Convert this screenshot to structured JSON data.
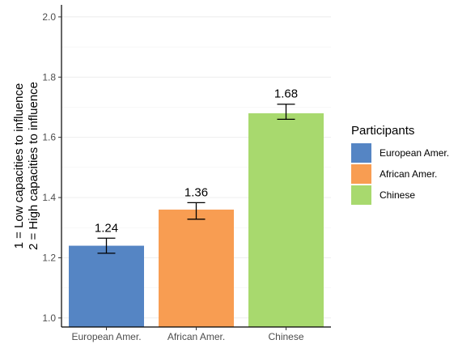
{
  "chart_data": {
    "type": "bar",
    "categories": [
      "European Amer.",
      "African Amer.",
      "Chinese"
    ],
    "values": [
      1.24,
      1.36,
      1.68
    ],
    "error_low": [
      1.215,
      1.328,
      1.66
    ],
    "error_high": [
      1.265,
      1.383,
      1.71
    ],
    "data_labels": [
      "1.24",
      "1.36",
      "1.68"
    ],
    "colors": [
      "#5585c4",
      "#f89d52",
      "#a8d96e"
    ],
    "ylabel_line1": "1 = Low capacities to influence",
    "ylabel_line2": "2 = High capacities to influence",
    "xlabel": "",
    "ylim": [
      0.97,
      2.04
    ],
    "yticks": [
      1.0,
      1.2,
      1.4,
      1.6,
      1.8,
      2.0
    ],
    "ytick_labels": [
      "1.0",
      "1.2",
      "1.4",
      "1.6",
      "1.8",
      "2.0"
    ],
    "grid": true,
    "legend": {
      "title": "Participants",
      "position": "right",
      "items": [
        "European Amer.",
        "African Amer.",
        "Chinese"
      ]
    }
  }
}
